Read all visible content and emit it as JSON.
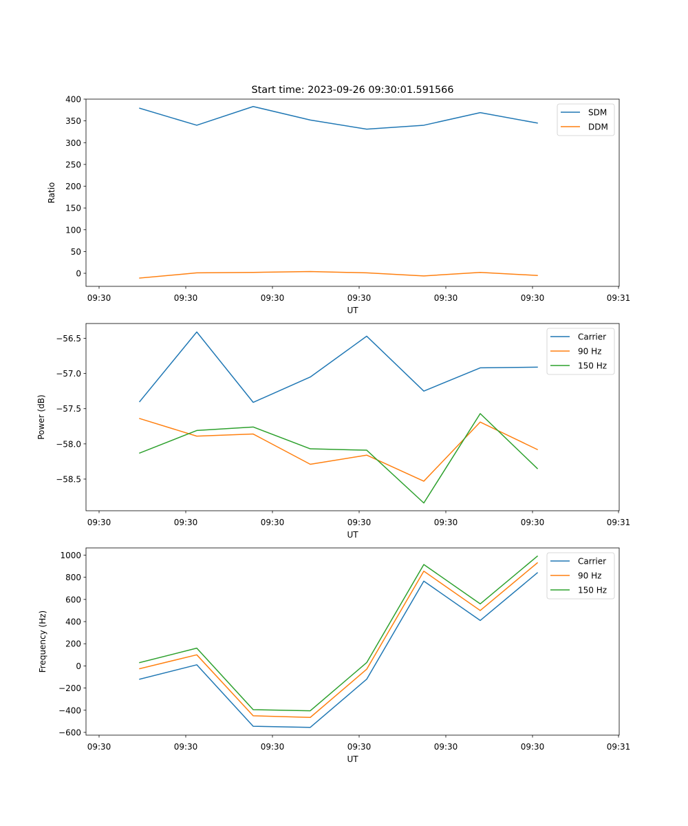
{
  "chart_data": [
    {
      "type": "line",
      "title": "Start time: 2023-09-26 09:30:01.591566",
      "xlabel": "UT",
      "ylabel": "Ratio",
      "x_tick_labels": [
        "09:30",
        "09:30",
        "09:30",
        "09:30",
        "09:30",
        "09:30",
        "09:31"
      ],
      "y_ticks": [
        0,
        50,
        100,
        150,
        200,
        250,
        300,
        350,
        400
      ],
      "ylim": [
        -30,
        400
      ],
      "legend_position": "top-right",
      "series": [
        {
          "name": "SDM",
          "color": "#1f77b4",
          "values": [
            379,
            340,
            383,
            352,
            331,
            340,
            369,
            345
          ]
        },
        {
          "name": "DDM",
          "color": "#ff7f0e",
          "values": [
            -11,
            1,
            2,
            4,
            1,
            -6,
            2,
            -5
          ]
        }
      ]
    },
    {
      "type": "line",
      "title": "",
      "xlabel": "UT",
      "ylabel": "Power (dB)",
      "x_tick_labels": [
        "09:30",
        "09:30",
        "09:30",
        "09:30",
        "09:30",
        "09:30",
        "09:31"
      ],
      "y_ticks": [
        -58.5,
        -58.0,
        -57.5,
        -57.0,
        -56.5
      ],
      "y_tick_labels": [
        "−58.5",
        "−58.0",
        "−57.5",
        "−57.0",
        "−56.5"
      ],
      "ylim": [
        -58.95,
        -56.29
      ],
      "legend_position": "top-right",
      "series": [
        {
          "name": "Carrier",
          "color": "#1f77b4",
          "values": [
            -57.4,
            -56.41,
            -57.41,
            -57.05,
            -56.47,
            -57.25,
            -56.92,
            -56.91
          ]
        },
        {
          "name": "90 Hz",
          "color": "#ff7f0e",
          "values": [
            -57.64,
            -57.89,
            -57.86,
            -58.29,
            -58.16,
            -58.53,
            -57.69,
            -58.08
          ]
        },
        {
          "name": "150 Hz",
          "color": "#2ca02c",
          "values": [
            -58.13,
            -57.81,
            -57.76,
            -58.07,
            -58.09,
            -58.84,
            -57.57,
            -58.35
          ]
        }
      ]
    },
    {
      "type": "line",
      "title": "",
      "xlabel": "UT",
      "ylabel": "Frequency (Hz)",
      "x_tick_labels": [
        "09:30",
        "09:30",
        "09:30",
        "09:30",
        "09:30",
        "09:30",
        "09:31"
      ],
      "y_ticks": [
        -600,
        -400,
        -200,
        0,
        200,
        400,
        600,
        800,
        1000
      ],
      "y_tick_labels": [
        "−600",
        "−400",
        "−200",
        "0",
        "200",
        "400",
        "600",
        "800",
        "1000"
      ],
      "ylim": [
        -625,
        1065
      ],
      "legend_position": "top-right",
      "series": [
        {
          "name": "Carrier",
          "color": "#1f77b4",
          "values": [
            -120,
            10,
            -545,
            -555,
            -120,
            765,
            410,
            840
          ]
        },
        {
          "name": "90 Hz",
          "color": "#ff7f0e",
          "values": [
            -25,
            100,
            -450,
            -465,
            -30,
            855,
            500,
            930
          ]
        },
        {
          "name": "150 Hz",
          "color": "#2ca02c",
          "values": [
            30,
            160,
            -395,
            -405,
            30,
            915,
            560,
            990
          ]
        }
      ]
    }
  ]
}
